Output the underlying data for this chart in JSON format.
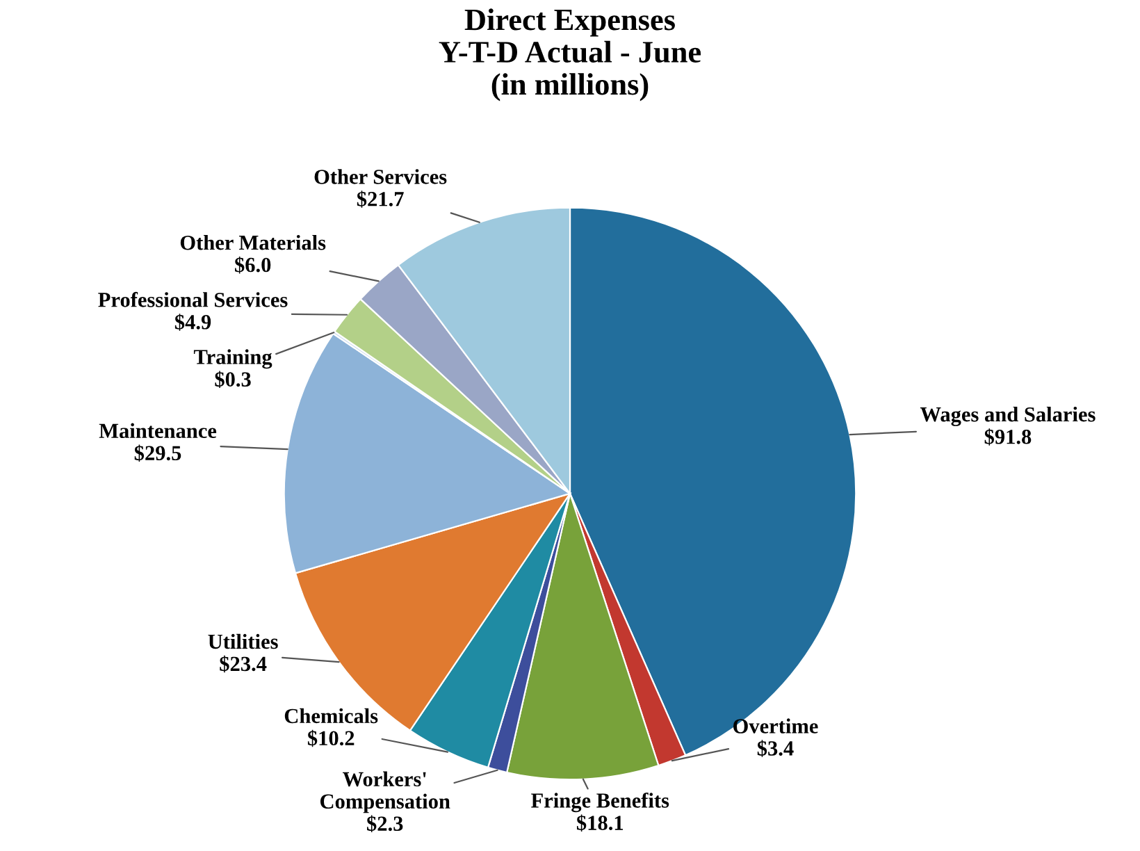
{
  "chart_data": {
    "type": "pie",
    "title": "Direct Expenses\nY-T-D Actual - June\n(in millions)",
    "categories": [
      "Wages and Salaries",
      "Overtime",
      "Fringe Benefits",
      "Workers'\nCompensation",
      "Chemicals",
      "Utilities",
      "Maintenance",
      "Training",
      "Professional Services",
      "Other Materials",
      "Other Services"
    ],
    "values": [
      91.8,
      3.4,
      18.1,
      2.3,
      10.2,
      23.4,
      29.5,
      0.3,
      4.9,
      6.0,
      21.7
    ],
    "value_labels": [
      "$91.8",
      "$3.4",
      "$18.1",
      "$2.3",
      "$10.2",
      "$23.4",
      "$29.5",
      "$0.3",
      "$4.9",
      "$6.0",
      "$21.7"
    ],
    "colors": [
      "#226e9c",
      "#c2382f",
      "#78a23a",
      "#3d4e9c",
      "#1f8ba3",
      "#e07a30",
      "#8db3d8",
      "#c8d8ec",
      "#b3d088",
      "#9aa6c6",
      "#9ec9de"
    ]
  }
}
